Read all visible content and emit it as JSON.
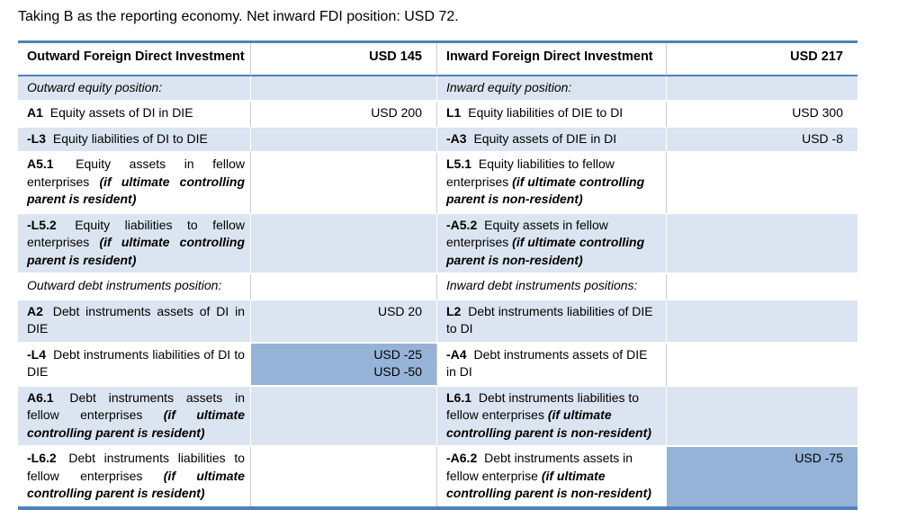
{
  "title": "Taking B as the reporting economy. Net inward FDI position: USD 72.",
  "colors": {
    "accent_border": "#4F81BD",
    "row_shade": "#DBE5F1",
    "cell_highlight": "#95B3D7",
    "grid_line": "#CBCBCB"
  },
  "table": {
    "header": {
      "left_label": "Outward Foreign Direct Investment",
      "left_value": "USD 145",
      "right_label": "Inward Foreign Direct Investment",
      "right_value": "USD 217"
    },
    "rows": [
      {
        "type": "section",
        "shaded": true,
        "left": {
          "label": "Outward equity position:"
        },
        "right": {
          "label": "Inward equity position:"
        }
      },
      {
        "type": "item",
        "shaded": false,
        "left": {
          "code": "A1",
          "text": "Equity assets of DI in DIE",
          "values": [
            "USD 200"
          ],
          "value_highlight": false
        },
        "right": {
          "code": "L1",
          "text": "Equity liabilities of DIE to DI",
          "values": [
            "USD 300"
          ],
          "value_highlight": false
        }
      },
      {
        "type": "item",
        "shaded": true,
        "left": {
          "code": "-L3",
          "text": "Equity liabilities of DI to DIE",
          "values": [],
          "value_highlight": false
        },
        "right": {
          "code": "-A3",
          "text": "Equity assets of DIE in DI",
          "values": [
            "USD -8"
          ],
          "value_highlight": true
        }
      },
      {
        "type": "item",
        "shaded": false,
        "left": {
          "code": "A5.1",
          "text": "Equity assets in fellow enterprises",
          "note": "(if ultimate controlling parent is resident)",
          "values": [],
          "value_highlight": false
        },
        "right": {
          "code": "L5.1",
          "text": "Equity liabilities to fellow enterprises",
          "note": "(if ultimate controlling parent is non-resident)",
          "values": [],
          "value_highlight": false
        }
      },
      {
        "type": "item",
        "shaded": true,
        "left": {
          "code": "-L5.2",
          "text": "Equity liabilities to fellow enterprises",
          "note": "(if ultimate controlling parent is resident)",
          "values": [],
          "value_highlight": false
        },
        "right": {
          "code": "-A5.2",
          "text": "Equity assets in fellow enterprises",
          "note": "(if ultimate controlling parent is non-resident)",
          "values": [],
          "value_highlight": false
        }
      },
      {
        "type": "section",
        "shaded": false,
        "left": {
          "label": "Outward debt instruments position:"
        },
        "right": {
          "label": "Inward debt instruments positions:"
        }
      },
      {
        "type": "item",
        "shaded": true,
        "left": {
          "code": "A2",
          "text": "Debt instruments assets of DI in DIE",
          "values": [
            "USD 20"
          ],
          "value_highlight": false
        },
        "right": {
          "code": "L2",
          "text": "Debt instruments liabilities of DIE to DI",
          "values": [],
          "value_highlight": false
        }
      },
      {
        "type": "item",
        "shaded": false,
        "left": {
          "code": "-L4",
          "text": "Debt instruments liabilities of DI to DIE",
          "values": [
            "USD -25",
            "USD -50"
          ],
          "value_highlight": true
        },
        "right": {
          "code": "-A4",
          "text": "Debt instruments assets of DIE in DI",
          "values": [],
          "value_highlight": false
        }
      },
      {
        "type": "item",
        "shaded": true,
        "left": {
          "code": "A6.1",
          "text": "Debt instruments assets in fellow enterprises",
          "note": "(if ultimate controlling parent is resident)",
          "values": [],
          "value_highlight": false
        },
        "right": {
          "code": "L6.1",
          "text": "Debt instruments liabilities to fellow enterprises",
          "note": "(if ultimate controlling parent is non-resident)",
          "values": [],
          "value_highlight": false
        }
      },
      {
        "type": "item",
        "shaded": false,
        "left": {
          "code": "-L6.2",
          "text": "Debt instruments liabilities to fellow enterprises",
          "note": "(if ultimate controlling parent is resident)",
          "values": [],
          "value_highlight": false
        },
        "right": {
          "code": "-A6.2",
          "text": "Debt instruments assets in fellow enterprise",
          "note": "(if ultimate controlling parent is non-resident)",
          "values": [
            "USD -75"
          ],
          "value_highlight": true
        }
      }
    ]
  }
}
